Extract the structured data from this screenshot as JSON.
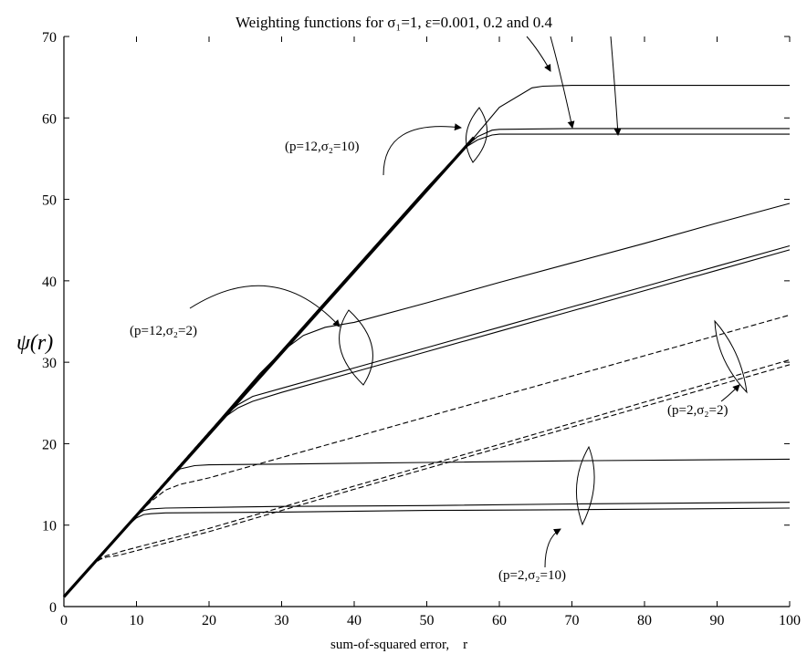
{
  "chart_data": {
    "type": "line",
    "title": "Weighting functions for σ₁=1, ε=0.001, 0.2 and 0.4",
    "xlabel": "sum-of-squared error,    r",
    "ylabel": "ψ(r)",
    "xlim": [
      0,
      100
    ],
    "ylim": [
      0,
      70
    ],
    "xticks": [
      0,
      10,
      20,
      30,
      40,
      50,
      60,
      70,
      80,
      90,
      100
    ],
    "yticks": [
      0,
      10,
      20,
      30,
      40,
      50,
      60,
      70
    ],
    "grid": false,
    "legend": "none",
    "series": [
      {
        "style": "solid",
        "x": [
          0,
          10,
          20,
          30,
          40,
          50,
          56.5,
          60,
          64.5,
          66,
          70,
          80,
          90,
          100
        ],
        "y": [
          1.2,
          11.3,
          21.4,
          31.4,
          41.4,
          51.4,
          57.6,
          61.3,
          63.7,
          63.9,
          64,
          64,
          64,
          64
        ]
      },
      {
        "style": "solid",
        "x": [
          0,
          10,
          20,
          30,
          40,
          50,
          55,
          57,
          59,
          60,
          70,
          80,
          90,
          100
        ],
        "y": [
          1.2,
          11.3,
          21.4,
          31.4,
          41.4,
          51.4,
          56.2,
          57.7,
          58.5,
          58.6,
          58.7,
          58.7,
          58.7,
          58.7
        ]
      },
      {
        "style": "solid",
        "x": [
          0,
          10,
          20,
          30,
          40,
          50,
          55,
          57,
          59,
          60,
          70,
          80,
          90,
          100
        ],
        "y": [
          1.2,
          11.3,
          21.4,
          31.4,
          41.4,
          51.4,
          56.2,
          57.3,
          57.9,
          58,
          58,
          58,
          58,
          58
        ]
      },
      {
        "style": "solid",
        "x": [
          0,
          10,
          20,
          27,
          30,
          33,
          36,
          40,
          50,
          60,
          70,
          80,
          90,
          100
        ],
        "y": [
          1.2,
          11.3,
          21.4,
          28.6,
          31.3,
          33.3,
          34.3,
          34.9,
          37.3,
          39.8,
          42.2,
          44.6,
          47.1,
          49.5
        ]
      },
      {
        "style": "solid",
        "x": [
          0,
          10,
          20,
          22.2,
          24,
          26,
          30,
          40,
          50,
          60,
          70,
          80,
          90,
          100
        ],
        "y": [
          1.2,
          11.3,
          21.4,
          23.5,
          24.8,
          25.8,
          26.8,
          29.3,
          31.8,
          34.3,
          36.8,
          39.3,
          41.8,
          44.3
        ]
      },
      {
        "style": "solid",
        "x": [
          0,
          10,
          20,
          22.2,
          24,
          26,
          30,
          40,
          50,
          60,
          70,
          80,
          90,
          100
        ],
        "y": [
          1.2,
          11.3,
          21.4,
          23.3,
          24.4,
          25.2,
          26.3,
          28.8,
          31.3,
          33.8,
          36.3,
          38.8,
          41.3,
          43.8
        ]
      },
      {
        "style": "solid",
        "x": [
          0,
          10,
          14,
          16,
          18,
          20,
          30,
          50,
          70,
          100
        ],
        "y": [
          1.2,
          11.3,
          15.3,
          16.9,
          17.3,
          17.4,
          17.5,
          17.7,
          17.9,
          18.1
        ]
      },
      {
        "style": "solid",
        "x": [
          0,
          8,
          10,
          11,
          12,
          14,
          30,
          50,
          70,
          100
        ],
        "y": [
          1.2,
          9.3,
          11.2,
          11.8,
          12,
          12.1,
          12.3,
          12.4,
          12.6,
          12.8
        ]
      },
      {
        "style": "solid",
        "x": [
          0,
          8,
          10,
          11,
          12,
          14,
          30,
          50,
          70,
          100
        ],
        "y": [
          1.2,
          9.3,
          10.9,
          11.3,
          11.4,
          11.5,
          11.6,
          11.8,
          11.9,
          12.1
        ]
      },
      {
        "style": "dashed",
        "x": [
          0,
          10,
          12,
          14,
          16,
          18,
          20,
          40,
          60,
          80,
          100
        ],
        "y": [
          1.2,
          11.2,
          12.9,
          14.3,
          15,
          15.4,
          15.8,
          20.8,
          25.8,
          30.8,
          35.8
        ]
      },
      {
        "style": "dashed",
        "x": [
          0,
          4,
          5,
          6,
          7,
          8,
          20,
          40,
          60,
          80,
          100
        ],
        "y": [
          1.2,
          5.2,
          5.9,
          6.3,
          6.5,
          6.8,
          9.6,
          14.8,
          19.9,
          25.1,
          30.3
        ]
      },
      {
        "style": "dashed",
        "x": [
          0,
          4,
          5,
          6,
          7,
          8,
          20,
          40,
          60,
          80,
          100
        ],
        "y": [
          1.2,
          5.2,
          5.8,
          6.1,
          6.2,
          6.4,
          9.2,
          14.4,
          19.5,
          24.6,
          29.7
        ]
      }
    ],
    "annotations": [
      {
        "text": "(p=12,σ₂=10)"
      },
      {
        "text": "(p=12,σ₂=2)"
      },
      {
        "text": "(p=2,σ₂=2)"
      },
      {
        "text": "(p=2,σ₂=10)"
      }
    ]
  }
}
